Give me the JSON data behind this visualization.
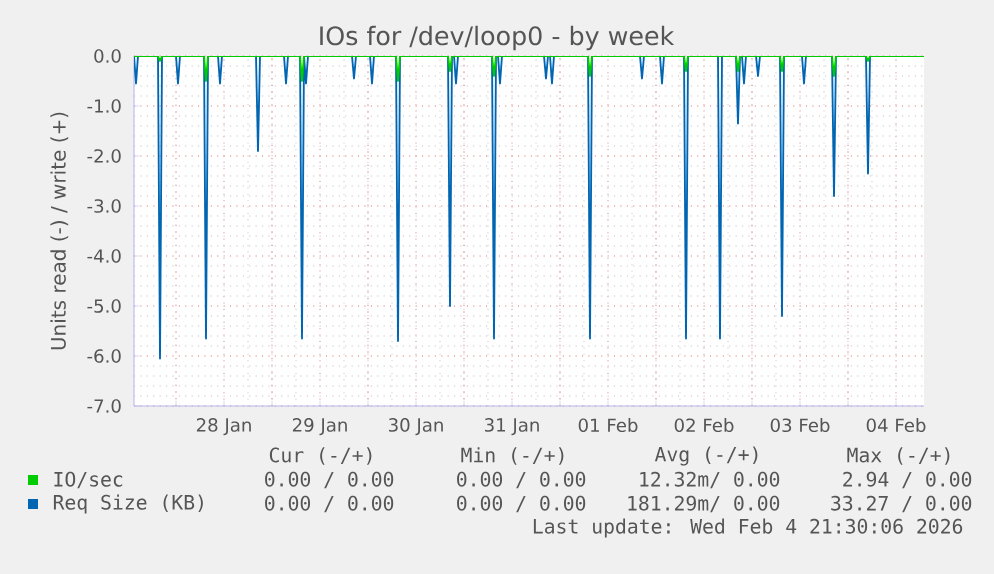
{
  "chart_data": {
    "type": "line",
    "title": "IOs for /dev/loop0 - by week",
    "ylabel": "Units read (-) / write (+)",
    "xlim": [
      "2026-01-27T13:30",
      "2026-02-04T19:00"
    ],
    "xticks": [
      {
        "value": "2026-01-28T12:00",
        "label": "28 Jan"
      },
      {
        "value": "2026-01-29T12:00",
        "label": "29 Jan"
      },
      {
        "value": "2026-01-30T12:00",
        "label": "30 Jan"
      },
      {
        "value": "2026-01-31T12:00",
        "label": "31 Jan"
      },
      {
        "value": "2026-02-01T12:00",
        "label": "01 Feb"
      },
      {
        "value": "2026-02-02T12:00",
        "label": "02 Feb"
      },
      {
        "value": "2026-02-03T12:00",
        "label": "03 Feb"
      },
      {
        "value": "2026-02-04T12:00",
        "label": "04 Feb"
      },
      {
        "value": "2026-01-28T00:00",
        "label": null
      },
      {
        "value": "2026-01-29T00:00",
        "label": null
      },
      {
        "value": "2026-01-30T00:00",
        "label": null
      },
      {
        "value": "2026-01-31T00:00",
        "label": null
      },
      {
        "value": "2026-02-01T00:00",
        "label": null
      },
      {
        "value": "2026-02-02T00:00",
        "label": null
      },
      {
        "value": "2026-02-03T00:00",
        "label": null
      },
      {
        "value": "2026-02-04T00:00",
        "label": null
      }
    ],
    "ylim": [
      -7,
      0
    ],
    "yticks": [
      {
        "value": -7,
        "label": "-7.0"
      },
      {
        "value": -6,
        "label": "-6.0"
      },
      {
        "value": -5,
        "label": "-5.0"
      },
      {
        "value": -4,
        "label": "-4.0"
      },
      {
        "value": -3,
        "label": "-3.0"
      },
      {
        "value": -2,
        "label": "-2.0"
      },
      {
        "value": -1,
        "label": "-1.0"
      },
      {
        "value": 0,
        "label": "0.0"
      }
    ],
    "grid": true,
    "legend": "bottom",
    "series": [
      {
        "name": "Req Size (KB)",
        "color": "#0066b3",
        "x": [
          "2026-01-27T13:30",
          "2026-01-27T14:00",
          "2026-01-27T14:30",
          "2026-01-27T19:30",
          "2026-01-27T20:00",
          "2026-01-27T20:30",
          "2026-01-28T00:00",
          "2026-01-28T00:30",
          "2026-01-28T01:00",
          "2026-01-28T07:00",
          "2026-01-28T07:30",
          "2026-01-28T08:00",
          "2026-01-28T10:30",
          "2026-01-28T11:00",
          "2026-01-28T11:30",
          "2026-01-28T20:00",
          "2026-01-28T20:30",
          "2026-01-28T21:00",
          "2026-01-29T03:00",
          "2026-01-29T03:30",
          "2026-01-29T04:00",
          "2026-01-29T07:00",
          "2026-01-29T07:30",
          "2026-01-29T08:00",
          "2026-01-29T08:30",
          "2026-01-29T09:00",
          "2026-01-29T20:00",
          "2026-01-29T20:30",
          "2026-01-29T21:00",
          "2026-01-30T00:30",
          "2026-01-30T01:00",
          "2026-01-30T01:30",
          "2026-01-30T07:00",
          "2026-01-30T07:30",
          "2026-01-30T08:00",
          "2026-01-30T20:00",
          "2026-01-30T20:30",
          "2026-01-30T21:00",
          "2026-01-30T21:30",
          "2026-01-30T22:00",
          "2026-01-30T22:30",
          "2026-01-31T07:00",
          "2026-01-31T07:30",
          "2026-01-31T08:00",
          "2026-01-31T08:30",
          "2026-01-31T09:00",
          "2026-01-31T09:30",
          "2026-01-31T20:00",
          "2026-01-31T20:30",
          "2026-01-31T21:00",
          "2026-01-31T21:30",
          "2026-01-31T22:00",
          "2026-01-31T22:30",
          "2026-02-01T07:00",
          "2026-02-01T07:30",
          "2026-02-01T08:00",
          "2026-02-01T20:00",
          "2026-02-01T20:30",
          "2026-02-01T21:00",
          "2026-02-02T01:00",
          "2026-02-02T01:30",
          "2026-02-02T02:00",
          "2026-02-02T07:00",
          "2026-02-02T07:30",
          "2026-02-02T08:00",
          "2026-02-02T15:30",
          "2026-02-02T16:00",
          "2026-02-02T16:30",
          "2026-02-02T20:00",
          "2026-02-02T20:30",
          "2026-02-02T21:00",
          "2026-02-02T21:30",
          "2026-02-02T22:00",
          "2026-02-02T22:30",
          "2026-02-03T01:00",
          "2026-02-03T01:30",
          "2026-02-03T02:00",
          "2026-02-03T07:00",
          "2026-02-03T07:30",
          "2026-02-03T08:00",
          "2026-02-03T12:30",
          "2026-02-03T13:00",
          "2026-02-03T13:30",
          "2026-02-03T20:00",
          "2026-02-03T20:30",
          "2026-02-03T21:00",
          "2026-02-04T04:30",
          "2026-02-04T05:00",
          "2026-02-04T05:30",
          "2026-02-04T19:00"
        ],
        "values": [
          0,
          -0.55,
          0,
          0,
          -6.05,
          0,
          0,
          -0.55,
          0,
          0,
          -5.65,
          0,
          0,
          -0.55,
          0,
          0,
          -1.9,
          0,
          0,
          -0.55,
          0,
          0,
          -5.65,
          0,
          -0.55,
          0,
          0,
          -0.45,
          0,
          0,
          -0.55,
          0,
          0,
          -5.7,
          0,
          0,
          -5.0,
          0,
          0,
          -0.55,
          0,
          0,
          -5.65,
          0,
          0,
          -0.55,
          0,
          0,
          -0.45,
          0,
          0,
          -0.55,
          0,
          0,
          -5.65,
          0,
          0,
          -0.45,
          0,
          0,
          -0.55,
          0,
          0,
          -5.65,
          0,
          0,
          -5.65,
          0,
          0,
          -1.35,
          0,
          0,
          -0.55,
          0,
          0,
          -0.4,
          0,
          0,
          -5.2,
          0,
          0,
          -0.55,
          0,
          0,
          -2.8,
          0,
          0,
          -2.35,
          0,
          0
        ]
      },
      {
        "name": "IO/sec",
        "color": "#00cc00",
        "x": [
          "2026-01-27T13:30",
          "2026-01-27T19:30",
          "2026-01-27T20:00",
          "2026-01-27T20:30",
          "2026-01-28T07:00",
          "2026-01-28T07:30",
          "2026-01-28T08:00",
          "2026-01-29T07:00",
          "2026-01-29T07:30",
          "2026-01-29T08:00",
          "2026-01-30T07:00",
          "2026-01-30T07:30",
          "2026-01-30T08:00",
          "2026-01-30T20:00",
          "2026-01-30T20:30",
          "2026-01-30T21:00",
          "2026-01-31T07:00",
          "2026-01-31T07:30",
          "2026-01-31T08:00",
          "2026-02-01T07:00",
          "2026-02-01T07:30",
          "2026-02-01T08:00",
          "2026-02-02T07:00",
          "2026-02-02T07:30",
          "2026-02-02T08:00",
          "2026-02-02T20:00",
          "2026-02-02T20:30",
          "2026-02-02T21:00",
          "2026-02-03T07:00",
          "2026-02-03T07:30",
          "2026-02-03T08:00",
          "2026-02-03T20:00",
          "2026-02-03T20:30",
          "2026-02-03T21:00",
          "2026-02-04T04:30",
          "2026-02-04T05:00",
          "2026-02-04T05:30",
          "2026-02-04T19:00"
        ],
        "values": [
          0,
          0,
          -0.1,
          0,
          0,
          -0.5,
          0,
          0,
          -0.5,
          0,
          0,
          -0.5,
          0,
          0,
          -0.3,
          0,
          0,
          -0.4,
          0,
          0,
          -0.4,
          0,
          0,
          -0.3,
          0,
          0,
          -0.3,
          0,
          0,
          -0.3,
          0,
          0,
          -0.4,
          0,
          0,
          -0.1,
          0,
          0
        ]
      }
    ],
    "annotations": [
      "Cur (-/+)",
      "Min (-/+)",
      "Avg (-/+)",
      "Max (-/+)",
      "0.00 / 0.00",
      "0.00 / 0.00",
      "181.29m/ 0.00",
      "33.27 / 0.00",
      "0.00 / 0.00",
      "0.00 / 0.00",
      "12.32m/ 0.00",
      "2.94 / 0.00",
      "Last update: Wed Feb  4 21:30:06 2026"
    ]
  }
}
